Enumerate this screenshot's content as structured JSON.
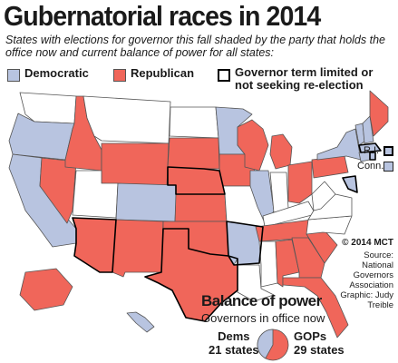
{
  "title": "Gubernatorial races in 2014",
  "subtitle": "States with elections for governor this fall shaded by the party that holds the office now and current balance of power for all states:",
  "legend": {
    "democratic": "Democratic",
    "republican": "Republican",
    "term_limited": "Governor term limited or not seeking re-election"
  },
  "colors": {
    "democratic": "#b8c4e0",
    "republican": "#f0665a",
    "no_election": "#ffffff",
    "border": "#555555"
  },
  "small_states": {
    "ri": "R.I.",
    "conn": "Conn."
  },
  "credit": {
    "copyright": "© 2014 MCT",
    "source_lines": [
      "Source:",
      "National",
      "Governors",
      "Association",
      "Graphic: Judy",
      "Treible"
    ]
  },
  "balance": {
    "title": "Balance of power",
    "subtitle": "Governors in office now",
    "dems_label": "Dems",
    "dems_count": "21 states",
    "gops_label": "GOPs",
    "gops_count": "29 states",
    "dems_value": 21,
    "gops_value": 29
  },
  "states": [
    {
      "name": "WA",
      "party": "none"
    },
    {
      "name": "OR",
      "party": "democratic"
    },
    {
      "name": "CA",
      "party": "democratic"
    },
    {
      "name": "NV",
      "party": "republican"
    },
    {
      "name": "ID",
      "party": "republican"
    },
    {
      "name": "MT",
      "party": "none"
    },
    {
      "name": "WY",
      "party": "republican"
    },
    {
      "name": "UT",
      "party": "none"
    },
    {
      "name": "CO",
      "party": "democratic"
    },
    {
      "name": "AZ",
      "party": "republican",
      "term_limited": true
    },
    {
      "name": "NM",
      "party": "republican"
    },
    {
      "name": "ND",
      "party": "none"
    },
    {
      "name": "SD",
      "party": "republican"
    },
    {
      "name": "NE",
      "party": "republican",
      "term_limited": true
    },
    {
      "name": "KS",
      "party": "republican"
    },
    {
      "name": "OK",
      "party": "republican"
    },
    {
      "name": "TX",
      "party": "republican",
      "term_limited": true
    },
    {
      "name": "MN",
      "party": "democratic"
    },
    {
      "name": "IA",
      "party": "republican"
    },
    {
      "name": "MO",
      "party": "none"
    },
    {
      "name": "AR",
      "party": "democratic",
      "term_limited": true
    },
    {
      "name": "LA",
      "party": "none"
    },
    {
      "name": "WI",
      "party": "republican"
    },
    {
      "name": "IL",
      "party": "democratic"
    },
    {
      "name": "MI",
      "party": "republican"
    },
    {
      "name": "IN",
      "party": "none"
    },
    {
      "name": "OH",
      "party": "republican"
    },
    {
      "name": "KY",
      "party": "none"
    },
    {
      "name": "TN",
      "party": "republican"
    },
    {
      "name": "MS",
      "party": "none"
    },
    {
      "name": "AL",
      "party": "republican"
    },
    {
      "name": "GA",
      "party": "republican"
    },
    {
      "name": "FL",
      "party": "republican"
    },
    {
      "name": "SC",
      "party": "republican"
    },
    {
      "name": "NC",
      "party": "none"
    },
    {
      "name": "VA",
      "party": "none"
    },
    {
      "name": "WV",
      "party": "none"
    },
    {
      "name": "PA",
      "party": "republican"
    },
    {
      "name": "NY",
      "party": "democratic"
    },
    {
      "name": "VT",
      "party": "democratic"
    },
    {
      "name": "NH",
      "party": "democratic"
    },
    {
      "name": "ME",
      "party": "republican"
    },
    {
      "name": "MA",
      "party": "democratic",
      "term_limited": true
    },
    {
      "name": "RI",
      "party": "democratic",
      "term_limited": true
    },
    {
      "name": "CT",
      "party": "democratic"
    },
    {
      "name": "MD",
      "party": "democratic",
      "term_limited": true
    },
    {
      "name": "AK",
      "party": "republican"
    },
    {
      "name": "HI",
      "party": "democratic"
    }
  ]
}
